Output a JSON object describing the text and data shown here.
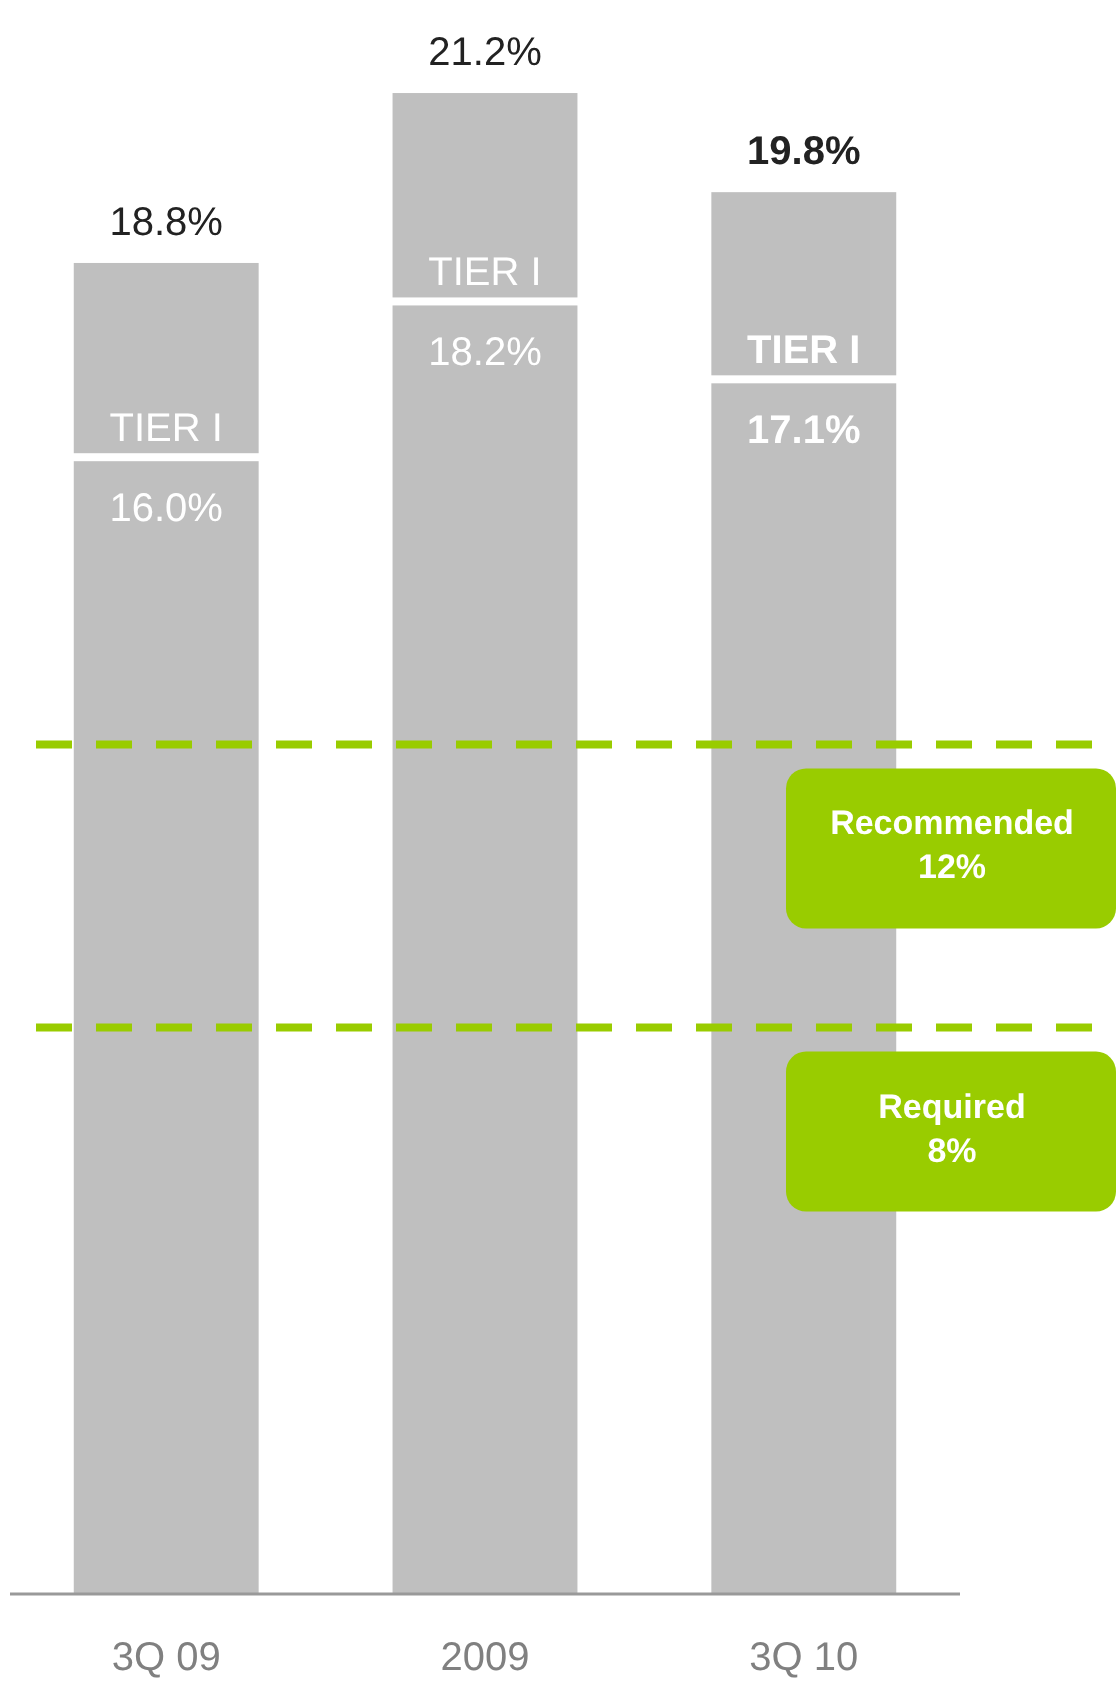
{
  "chart_data": {
    "type": "bar",
    "stacked": true,
    "categories": [
      "3Q 09",
      "2009",
      "3Q 10"
    ],
    "series": [
      {
        "name": "TIER I",
        "color": "#bfbfbf",
        "values": [
          16.0,
          18.2,
          17.1
        ],
        "value_labels": [
          "16.0%",
          "18.2%",
          "17.1%"
        ]
      },
      {
        "color": "#bfbfbf",
        "values": [
          2.8,
          3.0,
          2.7
        ]
      }
    ],
    "totals": [
      "18.8%",
      "21.2%",
      "19.8%"
    ],
    "ref_lines": [
      {
        "axis": "y",
        "value": 12,
        "label": "Recommended 12%",
        "color": "#99cc00",
        "line_style": "dashed"
      },
      {
        "axis": "y",
        "value": 8,
        "label": "Required 8%",
        "color": "#99cc00",
        "line_style": "dashed"
      }
    ]
  }
}
